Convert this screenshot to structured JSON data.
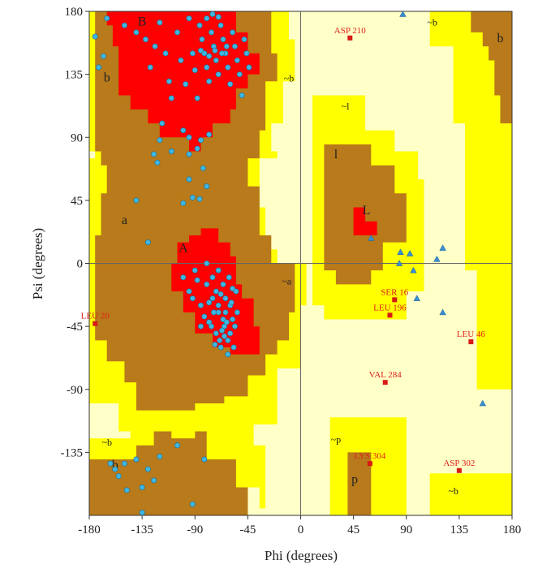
{
  "chart_data": {
    "type": "scatter",
    "title": "",
    "xlabel": "Phi (degrees)",
    "ylabel": "Psi (degrees)",
    "xlim": [
      -180,
      180
    ],
    "ylim": [
      -180,
      180
    ],
    "x_ticks": [
      -180,
      -135,
      -90,
      -45,
      0,
      45,
      90,
      135,
      180
    ],
    "y_ticks": [
      -135,
      -90,
      -45,
      0,
      45,
      90,
      135,
      180
    ],
    "grid": false,
    "region_colors": {
      "most_favoured": "#ff0000",
      "additional_allowed": "#b87a1a",
      "generously_allowed": "#ffff00",
      "disallowed": "#ffffc8"
    },
    "region_labels": [
      {
        "text": "B",
        "x": -135,
        "y": 170
      },
      {
        "text": "b",
        "x": -165,
        "y": 130
      },
      {
        "text": "A",
        "x": -100,
        "y": 8
      },
      {
        "text": "a",
        "x": -150,
        "y": 28
      },
      {
        "text": "L",
        "x": 56,
        "y": 35
      },
      {
        "text": "l",
        "x": 30,
        "y": 75
      },
      {
        "text": "p",
        "x": 46,
        "y": -157
      },
      {
        "text": "b",
        "x": -158,
        "y": -147
      },
      {
        "text": "b",
        "x": 170,
        "y": 158
      },
      {
        "text": "~b",
        "x": -165,
        "y": -130
      },
      {
        "text": "~b",
        "x": -10,
        "y": 130
      },
      {
        "text": "~b",
        "x": 112,
        "y": 170
      },
      {
        "text": "~b",
        "x": 130,
        "y": -165
      },
      {
        "text": "~l",
        "x": 38,
        "y": 110
      },
      {
        "text": "~a",
        "x": -12,
        "y": -15
      },
      {
        "text": "~p",
        "x": 30,
        "y": -128
      }
    ],
    "outlier_residues": [
      {
        "label": "ASP 210",
        "phi": 42,
        "psi": 161
      },
      {
        "label": "SER 16",
        "phi": 80,
        "psi": -26
      },
      {
        "label": "LEU 196",
        "phi": 76,
        "psi": -37
      },
      {
        "label": "LEU 20",
        "phi": -175,
        "psi": -43
      },
      {
        "label": "LEU 46",
        "phi": 145,
        "psi": -56
      },
      {
        "label": "VAL 284",
        "phi": 72,
        "psi": -85
      },
      {
        "label": "LYS 304",
        "phi": 59,
        "psi": -143
      },
      {
        "label": "ASP 302",
        "phi": 135,
        "psi": -148
      }
    ],
    "glycine_points": [
      [
        87,
        178
      ],
      [
        60,
        18
      ],
      [
        84,
        0
      ],
      [
        96,
        -5
      ],
      [
        85,
        8
      ],
      [
        93,
        7
      ],
      [
        99,
        -25
      ],
      [
        116,
        3
      ],
      [
        121,
        11
      ],
      [
        121,
        -35
      ],
      [
        155,
        -100
      ]
    ],
    "residue_points": [
      [
        -175,
        162
      ],
      [
        -172,
        140
      ],
      [
        -168,
        148
      ],
      [
        -165,
        175
      ],
      [
        -150,
        170
      ],
      [
        -140,
        165
      ],
      [
        -132,
        160
      ],
      [
        -128,
        140
      ],
      [
        -124,
        155
      ],
      [
        -120,
        172
      ],
      [
        -115,
        150
      ],
      [
        -112,
        130
      ],
      [
        -110,
        118
      ],
      [
        -105,
        165
      ],
      [
        -102,
        145
      ],
      [
        -98,
        128
      ],
      [
        -95,
        175
      ],
      [
        -92,
        150
      ],
      [
        -90,
        138
      ],
      [
        -88,
        118
      ],
      [
        -86,
        170
      ],
      [
        -84,
        160
      ],
      [
        -82,
        150
      ],
      [
        -80,
        140
      ],
      [
        -78,
        130
      ],
      [
        -76,
        165
      ],
      [
        -74,
        155
      ],
      [
        -72,
        145
      ],
      [
        -70,
        135
      ],
      [
        -68,
        170
      ],
      [
        -66,
        160
      ],
      [
        -64,
        150
      ],
      [
        -62,
        140
      ],
      [
        -60,
        128
      ],
      [
        -58,
        165
      ],
      [
        -56,
        155
      ],
      [
        -54,
        145
      ],
      [
        -52,
        135
      ],
      [
        -50,
        120
      ],
      [
        -48,
        160
      ],
      [
        -46,
        150
      ],
      [
        -44,
        140
      ],
      [
        -80,
        175
      ],
      [
        -75,
        178
      ],
      [
        -70,
        176
      ],
      [
        -85,
        152
      ],
      [
        -78,
        148
      ],
      [
        -73,
        152
      ],
      [
        -67,
        150
      ],
      [
        -63,
        155
      ],
      [
        -118,
        100
      ],
      [
        -120,
        88
      ],
      [
        -110,
        80
      ],
      [
        -100,
        95
      ],
      [
        -95,
        90
      ],
      [
        -85,
        88
      ],
      [
        -78,
        92
      ],
      [
        -88,
        82
      ],
      [
        -95,
        60
      ],
      [
        -80,
        55
      ],
      [
        -100,
        43
      ],
      [
        -92,
        47
      ],
      [
        -86,
        46
      ],
      [
        -140,
        45
      ],
      [
        -130,
        15
      ],
      [
        -110,
        80
      ],
      [
        -125,
        78
      ],
      [
        -122,
        72
      ],
      [
        -95,
        78
      ],
      [
        -83,
        68
      ],
      [
        -100,
        -10
      ],
      [
        -95,
        -20
      ],
      [
        -85,
        -30
      ],
      [
        -80,
        -15
      ],
      [
        -75,
        -25
      ],
      [
        -70,
        -35
      ],
      [
        -65,
        -45
      ],
      [
        -60,
        -30
      ],
      [
        -58,
        -40
      ],
      [
        -55,
        -20
      ],
      [
        -62,
        -55
      ],
      [
        -68,
        -60
      ],
      [
        -72,
        -50
      ],
      [
        -78,
        -42
      ],
      [
        -82,
        -38
      ],
      [
        -75,
        -10
      ],
      [
        -70,
        -5
      ],
      [
        -66,
        -15
      ],
      [
        -64,
        -25
      ],
      [
        -60,
        -50
      ],
      [
        -57,
        -60
      ],
      [
        -62,
        -65
      ],
      [
        -66,
        -40
      ],
      [
        -70,
        -30
      ],
      [
        -72,
        -20
      ],
      [
        -74,
        -35
      ],
      [
        -76,
        -45
      ],
      [
        -78,
        -28
      ],
      [
        -68,
        -22
      ],
      [
        -64,
        -35
      ],
      [
        -59,
        -28
      ],
      [
        -56,
        -45
      ],
      [
        -54,
        -35
      ],
      [
        -58,
        -18
      ],
      [
        -61,
        -10
      ],
      [
        -67,
        -48
      ],
      [
        -69,
        -55
      ],
      [
        -73,
        -58
      ],
      [
        -63,
        -42
      ],
      [
        -65,
        -52
      ],
      [
        -90,
        -5
      ],
      [
        -88,
        -12
      ],
      [
        -80,
        0
      ],
      [
        -92,
        -25
      ],
      [
        -85,
        -45
      ],
      [
        -140,
        -140
      ],
      [
        -150,
        -143
      ],
      [
        -162,
        -143
      ],
      [
        -158,
        -147
      ],
      [
        -130,
        -147
      ],
      [
        -125,
        -155
      ],
      [
        -135,
        -160
      ],
      [
        -120,
        -138
      ],
      [
        -105,
        -130
      ],
      [
        -82,
        -140
      ],
      [
        -92,
        -172
      ],
      [
        -135,
        -178
      ],
      [
        -155,
        -152
      ],
      [
        -148,
        -162
      ]
    ]
  }
}
